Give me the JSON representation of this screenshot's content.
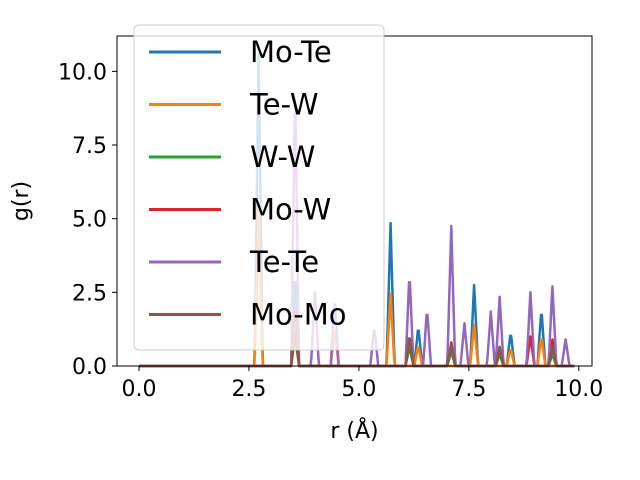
{
  "chart_data": {
    "type": "line",
    "title": "",
    "xlabel": "r (Å)",
    "ylabel": "g(r)",
    "xlim": [
      -0.5,
      10.3
    ],
    "ylim": [
      0,
      11.2
    ],
    "xticks": [
      0.0,
      2.5,
      5.0,
      7.5,
      10.0
    ],
    "xtick_labels": [
      "0.0",
      "2.5",
      "5.0",
      "7.5",
      "10.0"
    ],
    "yticks": [
      0.0,
      2.5,
      5.0,
      7.5,
      10.0
    ],
    "ytick_labels": [
      "0.0",
      "2.5",
      "5.0",
      "7.5",
      "10.0"
    ],
    "grid": false,
    "legend_position": "upper-left",
    "x_range": [
      0.0,
      9.9
    ],
    "series": [
      {
        "name": "Mo-Te",
        "color": "#1f77b4",
        "peaks": [
          [
            2.72,
            10.6
          ],
          [
            3.55,
            3.2
          ],
          [
            5.72,
            4.85
          ],
          [
            6.35,
            1.35
          ],
          [
            7.62,
            2.75
          ],
          [
            8.45,
            1.15
          ],
          [
            9.15,
            1.95
          ]
        ]
      },
      {
        "name": "Te-W",
        "color": "#ff7f0e",
        "peaks": [
          [
            2.72,
            5.3
          ],
          [
            3.55,
            1.7
          ],
          [
            4.45,
            1.3
          ],
          [
            5.72,
            2.45
          ],
          [
            6.35,
            0.7
          ],
          [
            7.62,
            1.4
          ],
          [
            8.45,
            0.6
          ],
          [
            9.15,
            1.0
          ]
        ]
      },
      {
        "name": "W-W",
        "color": "#2ca02c",
        "peaks": [
          [
            3.55,
            1.0
          ],
          [
            6.15,
            0.65
          ],
          [
            7.1,
            0.5
          ],
          [
            8.2,
            0.4
          ],
          [
            9.4,
            0.4
          ]
        ]
      },
      {
        "name": "Mo-W",
        "color": "#d62728",
        "peaks": [
          [
            3.55,
            1.3
          ],
          [
            6.15,
            1.0
          ],
          [
            7.1,
            0.8
          ],
          [
            8.2,
            0.6
          ],
          [
            8.9,
            1.0
          ],
          [
            9.4,
            0.9
          ]
        ]
      },
      {
        "name": "Te-Te",
        "color": "#9467bd",
        "peaks": [
          [
            3.55,
            9.6
          ],
          [
            4.0,
            2.5
          ],
          [
            4.45,
            2.35
          ],
          [
            5.35,
            1.35
          ],
          [
            6.15,
            3.2
          ],
          [
            6.55,
            1.95
          ],
          [
            7.1,
            4.75
          ],
          [
            7.4,
            1.45
          ],
          [
            8.0,
            1.85
          ],
          [
            8.2,
            2.35
          ],
          [
            8.9,
            2.5
          ],
          [
            9.4,
            2.7
          ],
          [
            9.7,
            0.9
          ]
        ]
      },
      {
        "name": "Mo-Mo",
        "color": "#8c564b",
        "peaks": [
          [
            3.55,
            2.2
          ],
          [
            6.15,
            1.05
          ],
          [
            7.1,
            0.75
          ],
          [
            8.2,
            0.65
          ],
          [
            9.4,
            0.65
          ]
        ]
      }
    ]
  }
}
